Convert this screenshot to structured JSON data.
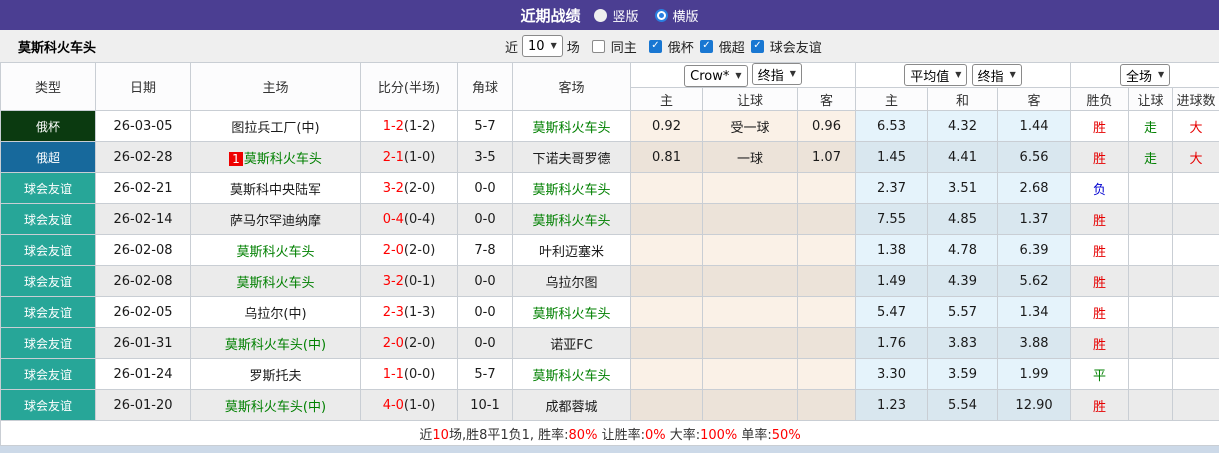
{
  "topbar": {
    "title": "近期战绩",
    "radios": [
      {
        "label": "竖版",
        "checked": false
      },
      {
        "label": "横版",
        "checked": true
      }
    ]
  },
  "filter": {
    "team": "莫斯科火车头",
    "near_label": "近",
    "matches_value": "10",
    "matches_unit": "场",
    "checkboxes": [
      {
        "label": "同主",
        "checked": false
      },
      {
        "label": "俄杯",
        "checked": true
      },
      {
        "label": "俄超",
        "checked": true
      },
      {
        "label": "球会友谊",
        "checked": true
      }
    ]
  },
  "table": {
    "left_headers": [
      "类型",
      "日期",
      "主场",
      "比分(半场)",
      "角球",
      "客场"
    ],
    "selects": [
      "Crow*",
      "终指",
      "平均值",
      "终指",
      "全场"
    ],
    "sub_headers": [
      "主",
      "让球",
      "客",
      "主",
      "和",
      "客",
      "胜负",
      "让球",
      "进球数"
    ],
    "rows": [
      {
        "type": "俄杯",
        "type_color": "#0b3a10",
        "date": "26-03-05",
        "home": "图拉兵工厂(中)",
        "home_green": false,
        "rank_badge": "",
        "score": "1-2",
        "half": "(1-2)",
        "corners": "5-7",
        "away": "莫斯科火车头",
        "away_green": true,
        "h_home": "0.92",
        "h_line": "受一球",
        "h_away": "0.96",
        "avg_home": "6.53",
        "avg_draw": "4.32",
        "avg_away": "1.44",
        "result": "胜",
        "result_color": "#e60000",
        "handicap_result": "走",
        "handicap_result_color": "#008000",
        "goals": "大",
        "goals_color": "#e60000"
      },
      {
        "type": "俄超",
        "type_color": "#17699c",
        "date": "26-02-28",
        "home": "莫斯科火车头",
        "home_green": true,
        "rank_badge": "1",
        "score": "2-1",
        "half": "(1-0)",
        "corners": "3-5",
        "away": "下诺夫哥罗德",
        "away_green": false,
        "h_home": "0.81",
        "h_line": "一球",
        "h_away": "1.07",
        "avg_home": "1.45",
        "avg_draw": "4.41",
        "avg_away": "6.56",
        "result": "胜",
        "result_color": "#e60000",
        "handicap_result": "走",
        "handicap_result_color": "#008000",
        "goals": "大",
        "goals_color": "#e60000"
      },
      {
        "type": "球会友谊",
        "type_color": "#27a698",
        "date": "26-02-21",
        "home": "莫斯科中央陆军",
        "home_green": false,
        "rank_badge": "",
        "score": "3-2",
        "half": "(2-0)",
        "corners": "0-0",
        "away": "莫斯科火车头",
        "away_green": true,
        "h_home": "",
        "h_line": "",
        "h_away": "",
        "avg_home": "2.37",
        "avg_draw": "3.51",
        "avg_away": "2.68",
        "result": "负",
        "result_color": "#0000d0",
        "handicap_result": "",
        "handicap_result_color": "#008000",
        "goals": "",
        "goals_color": "#e60000"
      },
      {
        "type": "球会友谊",
        "type_color": "#27a698",
        "date": "26-02-14",
        "home": "萨马尔罕迪纳摩",
        "home_green": false,
        "rank_badge": "",
        "score": "0-4",
        "half": "(0-4)",
        "corners": "0-0",
        "away": "莫斯科火车头",
        "away_green": true,
        "h_home": "",
        "h_line": "",
        "h_away": "",
        "avg_home": "7.55",
        "avg_draw": "4.85",
        "avg_away": "1.37",
        "result": "胜",
        "result_color": "#e60000",
        "handicap_result": "",
        "handicap_result_color": "#008000",
        "goals": "",
        "goals_color": "#e60000"
      },
      {
        "type": "球会友谊",
        "type_color": "#27a698",
        "date": "26-02-08",
        "home": "莫斯科火车头",
        "home_green": true,
        "rank_badge": "",
        "score": "2-0",
        "half": "(2-0)",
        "corners": "7-8",
        "away": "叶利迈塞米",
        "away_green": false,
        "h_home": "",
        "h_line": "",
        "h_away": "",
        "avg_home": "1.38",
        "avg_draw": "4.78",
        "avg_away": "6.39",
        "result": "胜",
        "result_color": "#e60000",
        "handicap_result": "",
        "handicap_result_color": "#008000",
        "goals": "",
        "goals_color": "#e60000"
      },
      {
        "type": "球会友谊",
        "type_color": "#27a698",
        "date": "26-02-08",
        "home": "莫斯科火车头",
        "home_green": true,
        "rank_badge": "",
        "score": "3-2",
        "half": "(0-1)",
        "corners": "0-0",
        "away": "乌拉尔图",
        "away_green": false,
        "h_home": "",
        "h_line": "",
        "h_away": "",
        "avg_home": "1.49",
        "avg_draw": "4.39",
        "avg_away": "5.62",
        "result": "胜",
        "result_color": "#e60000",
        "handicap_result": "",
        "handicap_result_color": "#008000",
        "goals": "",
        "goals_color": "#e60000"
      },
      {
        "type": "球会友谊",
        "type_color": "#27a698",
        "date": "26-02-05",
        "home": "乌拉尔(中)",
        "home_green": false,
        "rank_badge": "",
        "score": "2-3",
        "half": "(1-3)",
        "corners": "0-0",
        "away": "莫斯科火车头",
        "away_green": true,
        "h_home": "",
        "h_line": "",
        "h_away": "",
        "avg_home": "5.47",
        "avg_draw": "5.57",
        "avg_away": "1.34",
        "result": "胜",
        "result_color": "#e60000",
        "handicap_result": "",
        "handicap_result_color": "#008000",
        "goals": "",
        "goals_color": "#e60000"
      },
      {
        "type": "球会友谊",
        "type_color": "#27a698",
        "date": "26-01-31",
        "home": "莫斯科火车头(中)",
        "home_green": true,
        "rank_badge": "",
        "score": "2-0",
        "half": "(2-0)",
        "corners": "0-0",
        "away": "诺亚FC",
        "away_green": false,
        "h_home": "",
        "h_line": "",
        "h_away": "",
        "avg_home": "1.76",
        "avg_draw": "3.83",
        "avg_away": "3.88",
        "result": "胜",
        "result_color": "#e60000",
        "handicap_result": "",
        "handicap_result_color": "#008000",
        "goals": "",
        "goals_color": "#e60000"
      },
      {
        "type": "球会友谊",
        "type_color": "#27a698",
        "date": "26-01-24",
        "home": "罗斯托夫",
        "home_green": false,
        "rank_badge": "",
        "score": "1-1",
        "half": "(0-0)",
        "corners": "5-7",
        "away": "莫斯科火车头",
        "away_green": true,
        "h_home": "",
        "h_line": "",
        "h_away": "",
        "avg_home": "3.30",
        "avg_draw": "3.59",
        "avg_away": "1.99",
        "result": "平",
        "result_color": "#008000",
        "handicap_result": "",
        "handicap_result_color": "#008000",
        "goals": "",
        "goals_color": "#e60000"
      },
      {
        "type": "球会友谊",
        "type_color": "#27a698",
        "date": "26-01-20",
        "home": "莫斯科火车头(中)",
        "home_green": true,
        "rank_badge": "",
        "score": "4-0",
        "half": "(1-0)",
        "corners": "10-1",
        "away": "成都蓉城",
        "away_green": false,
        "h_home": "",
        "h_line": "",
        "h_away": "",
        "avg_home": "1.23",
        "avg_draw": "5.54",
        "avg_away": "12.90",
        "result": "胜",
        "result_color": "#e60000",
        "handicap_result": "",
        "handicap_result_color": "#008000",
        "goals": "",
        "goals_color": "#e60000"
      }
    ]
  },
  "footer": {
    "segments": [
      {
        "text": "近",
        "red": false
      },
      {
        "text": "10",
        "red": true
      },
      {
        "text": "场,胜8平1负1, 胜率:",
        "red": false
      },
      {
        "text": "80%",
        "red": true
      },
      {
        "text": " 让胜率:",
        "red": false
      },
      {
        "text": "0%",
        "red": true
      },
      {
        "text": " 大率:",
        "red": false
      },
      {
        "text": "100%",
        "red": true
      },
      {
        "text": " 单率:",
        "red": false
      },
      {
        "text": "50%",
        "red": true
      }
    ]
  }
}
